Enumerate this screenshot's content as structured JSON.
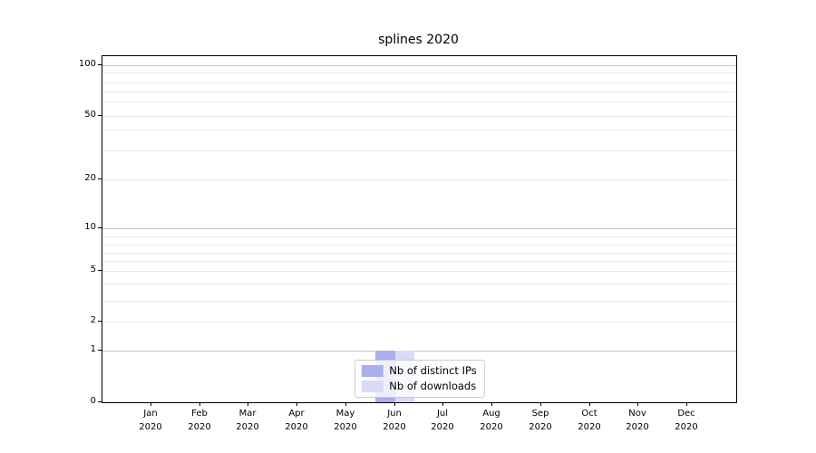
{
  "chart_data": {
    "type": "bar",
    "title": "splines 2020",
    "categories": [
      {
        "month": "Jan",
        "year": "2020"
      },
      {
        "month": "Feb",
        "year": "2020"
      },
      {
        "month": "Mar",
        "year": "2020"
      },
      {
        "month": "Apr",
        "year": "2020"
      },
      {
        "month": "May",
        "year": "2020"
      },
      {
        "month": "Jun",
        "year": "2020"
      },
      {
        "month": "Jul",
        "year": "2020"
      },
      {
        "month": "Aug",
        "year": "2020"
      },
      {
        "month": "Sep",
        "year": "2020"
      },
      {
        "month": "Oct",
        "year": "2020"
      },
      {
        "month": "Nov",
        "year": "2020"
      },
      {
        "month": "Dec",
        "year": "2020"
      }
    ],
    "series": [
      {
        "name": "Nb of distinct IPs",
        "color": "#a9aeec",
        "values": [
          0,
          0,
          0,
          0,
          0,
          1,
          0,
          0,
          0,
          0,
          0,
          0
        ]
      },
      {
        "name": "Nb of downloads",
        "color": "#d9dbf7",
        "values": [
          0,
          0,
          0,
          0,
          0,
          1,
          0,
          0,
          0,
          0,
          0,
          0
        ]
      }
    ],
    "y_axis": {
      "scale": "log-like (linear below 1)",
      "ticks": [
        {
          "value": 100,
          "label": "100",
          "pos": 0.025,
          "grid": "major"
        },
        {
          "value": 90,
          "pos": 0.047,
          "grid": "minor"
        },
        {
          "value": 80,
          "pos": 0.075,
          "grid": "minor"
        },
        {
          "value": 70,
          "pos": 0.103,
          "grid": "minor"
        },
        {
          "value": 60,
          "pos": 0.132,
          "grid": "minor"
        },
        {
          "value": 50,
          "label": "50",
          "pos": 0.172,
          "grid": "minor"
        },
        {
          "value": 40,
          "pos": 0.211,
          "grid": "minor"
        },
        {
          "value": 30,
          "pos": 0.273,
          "grid": "minor"
        },
        {
          "value": 20,
          "label": "20",
          "pos": 0.357,
          "grid": "minor"
        },
        {
          "value": 10,
          "label": "10",
          "pos": 0.498,
          "grid": "major"
        },
        {
          "value": 9,
          "pos": 0.52,
          "grid": "minor"
        },
        {
          "value": 8,
          "pos": 0.545,
          "grid": "minor"
        },
        {
          "value": 7,
          "pos": 0.569,
          "grid": "minor"
        },
        {
          "value": 6,
          "pos": 0.592,
          "grid": "minor"
        },
        {
          "value": 5,
          "label": "5",
          "pos": 0.621,
          "grid": "minor"
        },
        {
          "value": 4,
          "pos": 0.658,
          "grid": "minor"
        },
        {
          "value": 3,
          "pos": 0.707,
          "grid": "minor"
        },
        {
          "value": 2,
          "label": "2",
          "pos": 0.768,
          "grid": "minor"
        },
        {
          "value": 1,
          "label": "1",
          "pos": 0.851,
          "grid": "major"
        },
        {
          "value": 0,
          "label": "0",
          "pos": 1.0,
          "grid": "none"
        }
      ]
    },
    "legend": {
      "position": "lower center"
    },
    "colors": {
      "grid_major": "#c4c4c4",
      "grid_minor": "#e9e9e9",
      "spine": "#000000"
    }
  }
}
